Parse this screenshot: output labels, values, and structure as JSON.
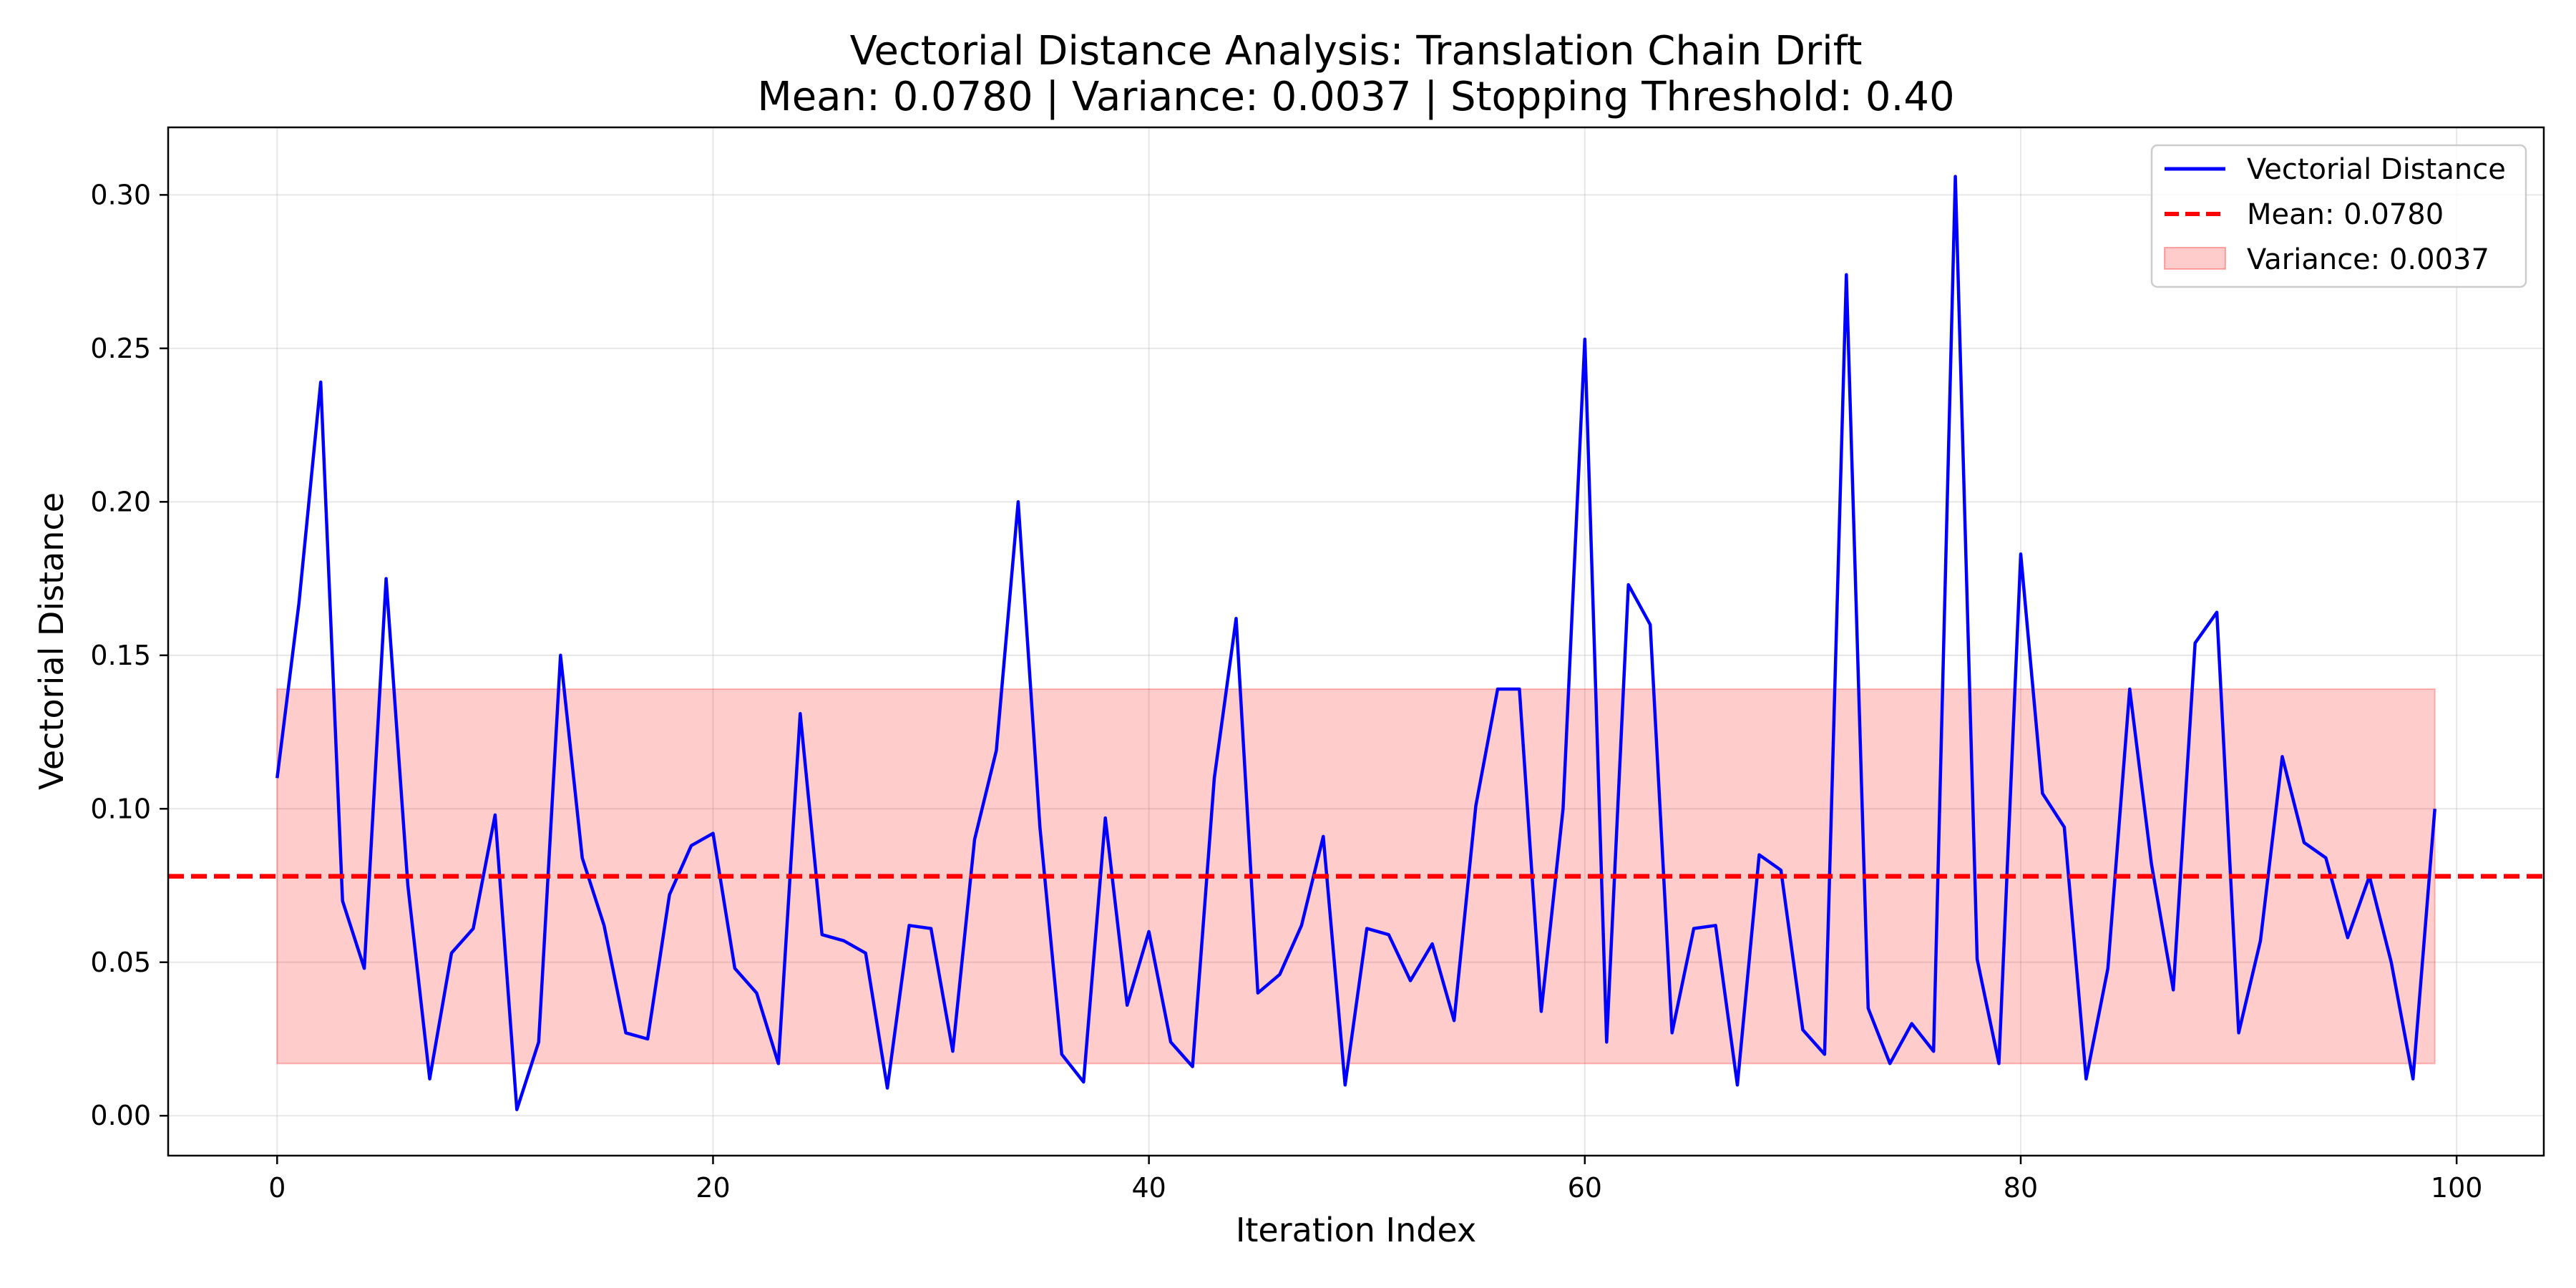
{
  "chart_data": {
    "type": "line",
    "title": "Vectorial Distance Analysis: Translation Chain Drift",
    "subtitle": "Mean: 0.0780 | Variance: 0.0037 | Stopping Threshold: 0.40",
    "xlabel": "Iteration Index",
    "ylabel": "Vectorial Distance",
    "xlim": [
      -5,
      104
    ],
    "ylim": [
      -0.013,
      0.322
    ],
    "xticks": [
      0,
      20,
      40,
      60,
      80,
      100
    ],
    "xtick_labels": [
      "0",
      "20",
      "40",
      "60",
      "80",
      "100"
    ],
    "yticks": [
      0.0,
      0.05,
      0.1,
      0.15,
      0.2,
      0.25,
      0.3
    ],
    "ytick_labels": [
      "0.00",
      "0.05",
      "0.10",
      "0.15",
      "0.20",
      "0.25",
      "0.30"
    ],
    "grid": true,
    "legend_position": "top-right",
    "series": [
      {
        "name": "Vectorial Distance",
        "color": "#0000ff",
        "x": [
          0,
          1,
          2,
          3,
          4,
          5,
          6,
          7,
          8,
          9,
          10,
          11,
          12,
          13,
          14,
          15,
          16,
          17,
          18,
          19,
          20,
          21,
          22,
          23,
          24,
          25,
          26,
          27,
          28,
          29,
          30,
          31,
          32,
          33,
          34,
          35,
          36,
          37,
          38,
          39,
          40,
          41,
          42,
          43,
          44,
          45,
          46,
          47,
          48,
          49,
          50,
          51,
          52,
          53,
          54,
          55,
          56,
          57,
          58,
          59,
          60,
          61,
          62,
          63,
          64,
          65,
          66,
          67,
          68,
          69,
          70,
          71,
          72,
          73,
          74,
          75,
          76,
          77,
          78,
          79,
          80,
          81,
          82,
          83,
          84,
          85,
          86,
          87,
          88,
          89,
          90,
          91,
          92,
          93,
          94,
          95,
          96,
          97,
          98,
          99
        ],
        "values": [
          0.11,
          0.167,
          0.239,
          0.07,
          0.048,
          0.175,
          0.075,
          0.012,
          0.053,
          0.061,
          0.098,
          0.002,
          0.024,
          0.15,
          0.084,
          0.062,
          0.027,
          0.025,
          0.072,
          0.088,
          0.092,
          0.048,
          0.04,
          0.017,
          0.131,
          0.059,
          0.057,
          0.053,
          0.009,
          0.062,
          0.061,
          0.021,
          0.09,
          0.119,
          0.2,
          0.094,
          0.02,
          0.011,
          0.097,
          0.036,
          0.06,
          0.024,
          0.016,
          0.11,
          0.162,
          0.04,
          0.046,
          0.062,
          0.091,
          0.01,
          0.061,
          0.059,
          0.044,
          0.056,
          0.031,
          0.101,
          0.139,
          0.139,
          0.034,
          0.1,
          0.253,
          0.024,
          0.173,
          0.16,
          0.027,
          0.061,
          0.062,
          0.01,
          0.085,
          0.08,
          0.028,
          0.02,
          0.274,
          0.035,
          0.017,
          0.03,
          0.021,
          0.306,
          0.051,
          0.017,
          0.183,
          0.105,
          0.094,
          0.012,
          0.048,
          0.139,
          0.082,
          0.041,
          0.154,
          0.164,
          0.027,
          0.057,
          0.117,
          0.089,
          0.084,
          0.058,
          0.078,
          0.05,
          0.012,
          0.1
        ]
      }
    ],
    "mean_line": {
      "name": "Mean: 0.0780",
      "value": 0.078,
      "color": "#ff0000"
    },
    "variance_band": {
      "name": "Variance: 0.0037",
      "y_low": 0.017,
      "y_high": 0.139,
      "x_start": 0,
      "x_end": 99,
      "color": "#ff0000"
    }
  }
}
